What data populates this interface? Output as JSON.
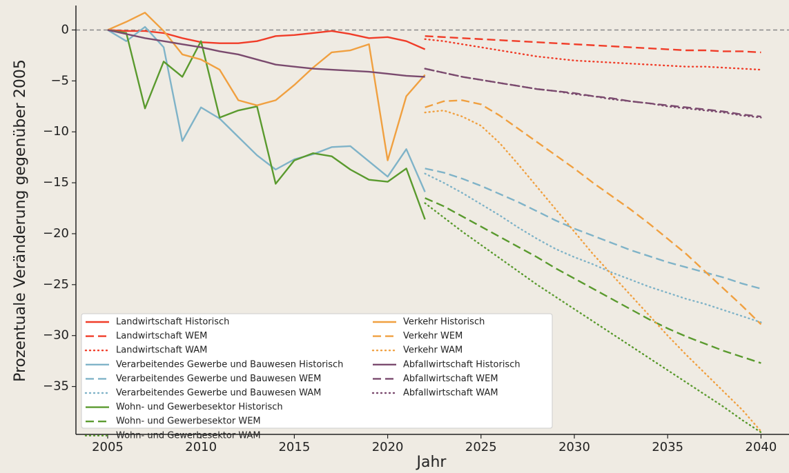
{
  "chart_data": {
    "type": "line",
    "xlabel": "Jahr",
    "ylabel": "Prozentuale Veränderung gegenüber 2005",
    "xlim": [
      2003.3,
      2041.5
    ],
    "ylim": [
      -39.7,
      2.4
    ],
    "xticks": [
      2005,
      2010,
      2015,
      2020,
      2025,
      2030,
      2035,
      2040
    ],
    "yticks": [
      0,
      {
        "value": -5,
        "label": "−5"
      },
      {
        "value": -10,
        "label": "−10"
      },
      {
        "value": -15,
        "label": "−15"
      },
      {
        "value": -20,
        "label": "−20"
      },
      {
        "value": -25,
        "label": "−25"
      },
      {
        "value": -30,
        "label": "−30"
      },
      {
        "value": -35,
        "label": "−35"
      }
    ],
    "hlines": [
      0
    ],
    "legend": "lower left",
    "series": [
      {
        "name": "Landwirtschaft Historisch",
        "color": "#f03c28",
        "style": "solid",
        "x": [
          2005,
          2006,
          2007,
          2008,
          2009,
          2010,
          2011,
          2012,
          2013,
          2014,
          2015,
          2016,
          2017,
          2018,
          2019,
          2020,
          2021,
          2022
        ],
        "values": [
          0,
          -0.1,
          -0.1,
          -0.3,
          -0.8,
          -1.2,
          -1.3,
          -1.3,
          -1.1,
          -0.6,
          -0.5,
          -0.3,
          -0.1,
          -0.4,
          -0.8,
          -0.7,
          -1.1,
          -1.9
        ]
      },
      {
        "name": "Landwirtschaft WEM",
        "color": "#f03c28",
        "style": "dashed",
        "x": [
          2022,
          2023,
          2024,
          2025,
          2026,
          2027,
          2028,
          2029,
          2030,
          2031,
          2032,
          2033,
          2034,
          2035,
          2036,
          2037,
          2038,
          2039,
          2040
        ],
        "values": [
          -0.6,
          -0.7,
          -0.8,
          -0.9,
          -1.0,
          -1.1,
          -1.2,
          -1.3,
          -1.4,
          -1.5,
          -1.6,
          -1.7,
          -1.8,
          -1.9,
          -2.0,
          -2.0,
          -2.1,
          -2.1,
          -2.2
        ]
      },
      {
        "name": "Landwirtschaft WAM",
        "color": "#f03c28",
        "style": "dotted",
        "x": [
          2022,
          2023,
          2024,
          2025,
          2026,
          2027,
          2028,
          2029,
          2030,
          2031,
          2032,
          2033,
          2034,
          2035,
          2036,
          2037,
          2038,
          2039,
          2040
        ],
        "values": [
          -0.9,
          -1.1,
          -1.4,
          -1.7,
          -2.0,
          -2.3,
          -2.6,
          -2.8,
          -3.0,
          -3.1,
          -3.2,
          -3.3,
          -3.4,
          -3.5,
          -3.6,
          -3.6,
          -3.7,
          -3.8,
          -3.9
        ]
      },
      {
        "name": "Verarbeitendes Gewerbe und Bauwesen Historisch",
        "color": "#7fb3c8",
        "style": "solid",
        "x": [
          2005,
          2006,
          2007,
          2008,
          2009,
          2010,
          2011,
          2012,
          2013,
          2014,
          2015,
          2016,
          2017,
          2018,
          2019,
          2020,
          2021,
          2022
        ],
        "values": [
          0,
          -1.1,
          0.3,
          -1.7,
          -10.9,
          -7.6,
          -8.7,
          -10.5,
          -12.3,
          -13.7,
          -12.7,
          -12.2,
          -11.5,
          -11.4,
          -12.9,
          -14.4,
          -11.7,
          -15.9
        ]
      },
      {
        "name": "Verarbeitendes Gewerbe und Bauwesen WEM",
        "color": "#7fb3c8",
        "style": "dashed",
        "x": [
          2022,
          2023,
          2024,
          2025,
          2026,
          2027,
          2028,
          2029,
          2030,
          2031,
          2032,
          2033,
          2034,
          2035,
          2036,
          2037,
          2038,
          2039,
          2040
        ],
        "values": [
          -13.6,
          -14.0,
          -14.6,
          -15.3,
          -16.1,
          -16.9,
          -17.8,
          -18.7,
          -19.5,
          -20.2,
          -20.9,
          -21.6,
          -22.2,
          -22.8,
          -23.3,
          -23.8,
          -24.3,
          -24.9,
          -25.4
        ]
      },
      {
        "name": "Verarbeitendes Gewerbe und Bauwesen WAM",
        "color": "#7fb3c8",
        "style": "dotted",
        "x": [
          2022,
          2023,
          2024,
          2025,
          2026,
          2027,
          2028,
          2029,
          2030,
          2031,
          2032,
          2033,
          2034,
          2035,
          2036,
          2037,
          2038,
          2039,
          2040
        ],
        "values": [
          -14.1,
          -15.0,
          -16.0,
          -17.1,
          -18.2,
          -19.4,
          -20.5,
          -21.5,
          -22.3,
          -23.0,
          -23.8,
          -24.5,
          -25.2,
          -25.8,
          -26.4,
          -26.9,
          -27.5,
          -28.1,
          -28.7
        ]
      },
      {
        "name": "Wohn- und Gewerbesektor Historisch",
        "color": "#5a9a2e",
        "style": "solid",
        "x": [
          2005,
          2006,
          2007,
          2008,
          2009,
          2010,
          2011,
          2012,
          2013,
          2014,
          2015,
          2016,
          2017,
          2018,
          2019,
          2020,
          2021,
          2022
        ],
        "values": [
          0,
          -0.3,
          -7.7,
          -3.1,
          -4.6,
          -1.1,
          -8.6,
          -7.9,
          -7.5,
          -15.1,
          -12.8,
          -12.1,
          -12.4,
          -13.7,
          -14.7,
          -14.9,
          -13.6,
          -18.6
        ]
      },
      {
        "name": "Wohn- und Gewerbesektor WEM",
        "color": "#5a9a2e",
        "style": "dashed",
        "x": [
          2022,
          2023,
          2024,
          2025,
          2026,
          2027,
          2028,
          2029,
          2030,
          2031,
          2032,
          2033,
          2034,
          2035,
          2036,
          2037,
          2038,
          2039,
          2040
        ],
        "values": [
          -16.5,
          -17.3,
          -18.3,
          -19.3,
          -20.3,
          -21.3,
          -22.3,
          -23.4,
          -24.4,
          -25.4,
          -26.4,
          -27.4,
          -28.4,
          -29.3,
          -30.1,
          -30.8,
          -31.5,
          -32.1,
          -32.7
        ]
      },
      {
        "name": "Wohn- und Gewerbesektor WAM",
        "color": "#5a9a2e",
        "style": "dotted",
        "x": [
          2022,
          2023,
          2024,
          2025,
          2026,
          2027,
          2028,
          2029,
          2030,
          2031,
          2032,
          2033,
          2034,
          2035,
          2036,
          2037,
          2038,
          2039,
          2040
        ],
        "values": [
          -17.0,
          -18.4,
          -19.8,
          -21.1,
          -22.4,
          -23.7,
          -25.0,
          -26.2,
          -27.4,
          -28.6,
          -29.8,
          -31.0,
          -32.2,
          -33.4,
          -34.6,
          -35.8,
          -37.0,
          -38.3,
          -39.5
        ]
      },
      {
        "name": "Verkehr Historisch",
        "color": "#f0a040",
        "style": "solid",
        "x": [
          2005,
          2006,
          2007,
          2008,
          2009,
          2010,
          2011,
          2012,
          2013,
          2014,
          2015,
          2016,
          2017,
          2018,
          2019,
          2020,
          2021,
          2022
        ],
        "values": [
          0,
          0.8,
          1.7,
          -0.1,
          -2.4,
          -2.9,
          -3.9,
          -6.9,
          -7.4,
          -6.9,
          -5.4,
          -3.7,
          -2.2,
          -2.0,
          -1.4,
          -12.8,
          -6.5,
          -4.4
        ]
      },
      {
        "name": "Verkehr WEM",
        "color": "#f0a040",
        "style": "dashed",
        "x": [
          2022,
          2023,
          2024,
          2025,
          2026,
          2027,
          2028,
          2029,
          2030,
          2031,
          2032,
          2033,
          2034,
          2035,
          2036,
          2037,
          2038,
          2039,
          2040
        ],
        "values": [
          -7.6,
          -7.0,
          -6.9,
          -7.3,
          -8.4,
          -9.7,
          -11.0,
          -12.3,
          -13.6,
          -15.0,
          -16.3,
          -17.6,
          -19.0,
          -20.5,
          -22.0,
          -23.7,
          -25.4,
          -27.1,
          -28.9
        ]
      },
      {
        "name": "Verkehr WAM",
        "color": "#f0a040",
        "style": "dotted",
        "x": [
          2022,
          2023,
          2024,
          2025,
          2026,
          2027,
          2028,
          2029,
          2030,
          2031,
          2032,
          2033,
          2034,
          2035,
          2036,
          2037,
          2038,
          2039,
          2040
        ],
        "values": [
          -8.1,
          -7.9,
          -8.5,
          -9.4,
          -11.1,
          -13.2,
          -15.4,
          -17.6,
          -19.8,
          -22.0,
          -24.0,
          -26.0,
          -28.0,
          -30.0,
          -31.9,
          -33.7,
          -35.5,
          -37.3,
          -39.4
        ]
      },
      {
        "name": "Abfallwirtschaft Historisch",
        "color": "#7a4a6e",
        "style": "solid",
        "x": [
          2005,
          2006,
          2007,
          2008,
          2009,
          2010,
          2011,
          2012,
          2013,
          2014,
          2015,
          2016,
          2017,
          2018,
          2019,
          2020,
          2021,
          2022
        ],
        "values": [
          0,
          -0.4,
          -0.8,
          -1.1,
          -1.4,
          -1.7,
          -2.1,
          -2.4,
          -2.9,
          -3.4,
          -3.6,
          -3.8,
          -3.9,
          -4.0,
          -4.1,
          -4.3,
          -4.5,
          -4.6
        ]
      },
      {
        "name": "Abfallwirtschaft WEM",
        "color": "#7a4a6e",
        "style": "dashed",
        "x": [
          2022,
          2023,
          2024,
          2025,
          2026,
          2027,
          2028,
          2029,
          2030,
          2031,
          2032,
          2033,
          2034,
          2035,
          2036,
          2037,
          2038,
          2039,
          2040
        ],
        "values": [
          -3.8,
          -4.2,
          -4.6,
          -4.9,
          -5.2,
          -5.5,
          -5.8,
          -6.0,
          -6.2,
          -6.5,
          -6.7,
          -7.0,
          -7.2,
          -7.4,
          -7.6,
          -7.8,
          -8.0,
          -8.3,
          -8.5
        ]
      },
      {
        "name": "Abfallwirtschaft WAM",
        "color": "#7a4a6e",
        "style": "dotted",
        "x": [
          2022,
          2023,
          2024,
          2025,
          2026,
          2027,
          2028,
          2029,
          2030,
          2031,
          2032,
          2033,
          2034,
          2035,
          2036,
          2037,
          2038,
          2039,
          2040
        ],
        "values": [
          -3.8,
          -4.2,
          -4.6,
          -4.9,
          -5.2,
          -5.5,
          -5.8,
          -6.0,
          -6.3,
          -6.5,
          -6.8,
          -7.0,
          -7.2,
          -7.5,
          -7.7,
          -7.9,
          -8.1,
          -8.4,
          -8.6
        ]
      }
    ]
  }
}
